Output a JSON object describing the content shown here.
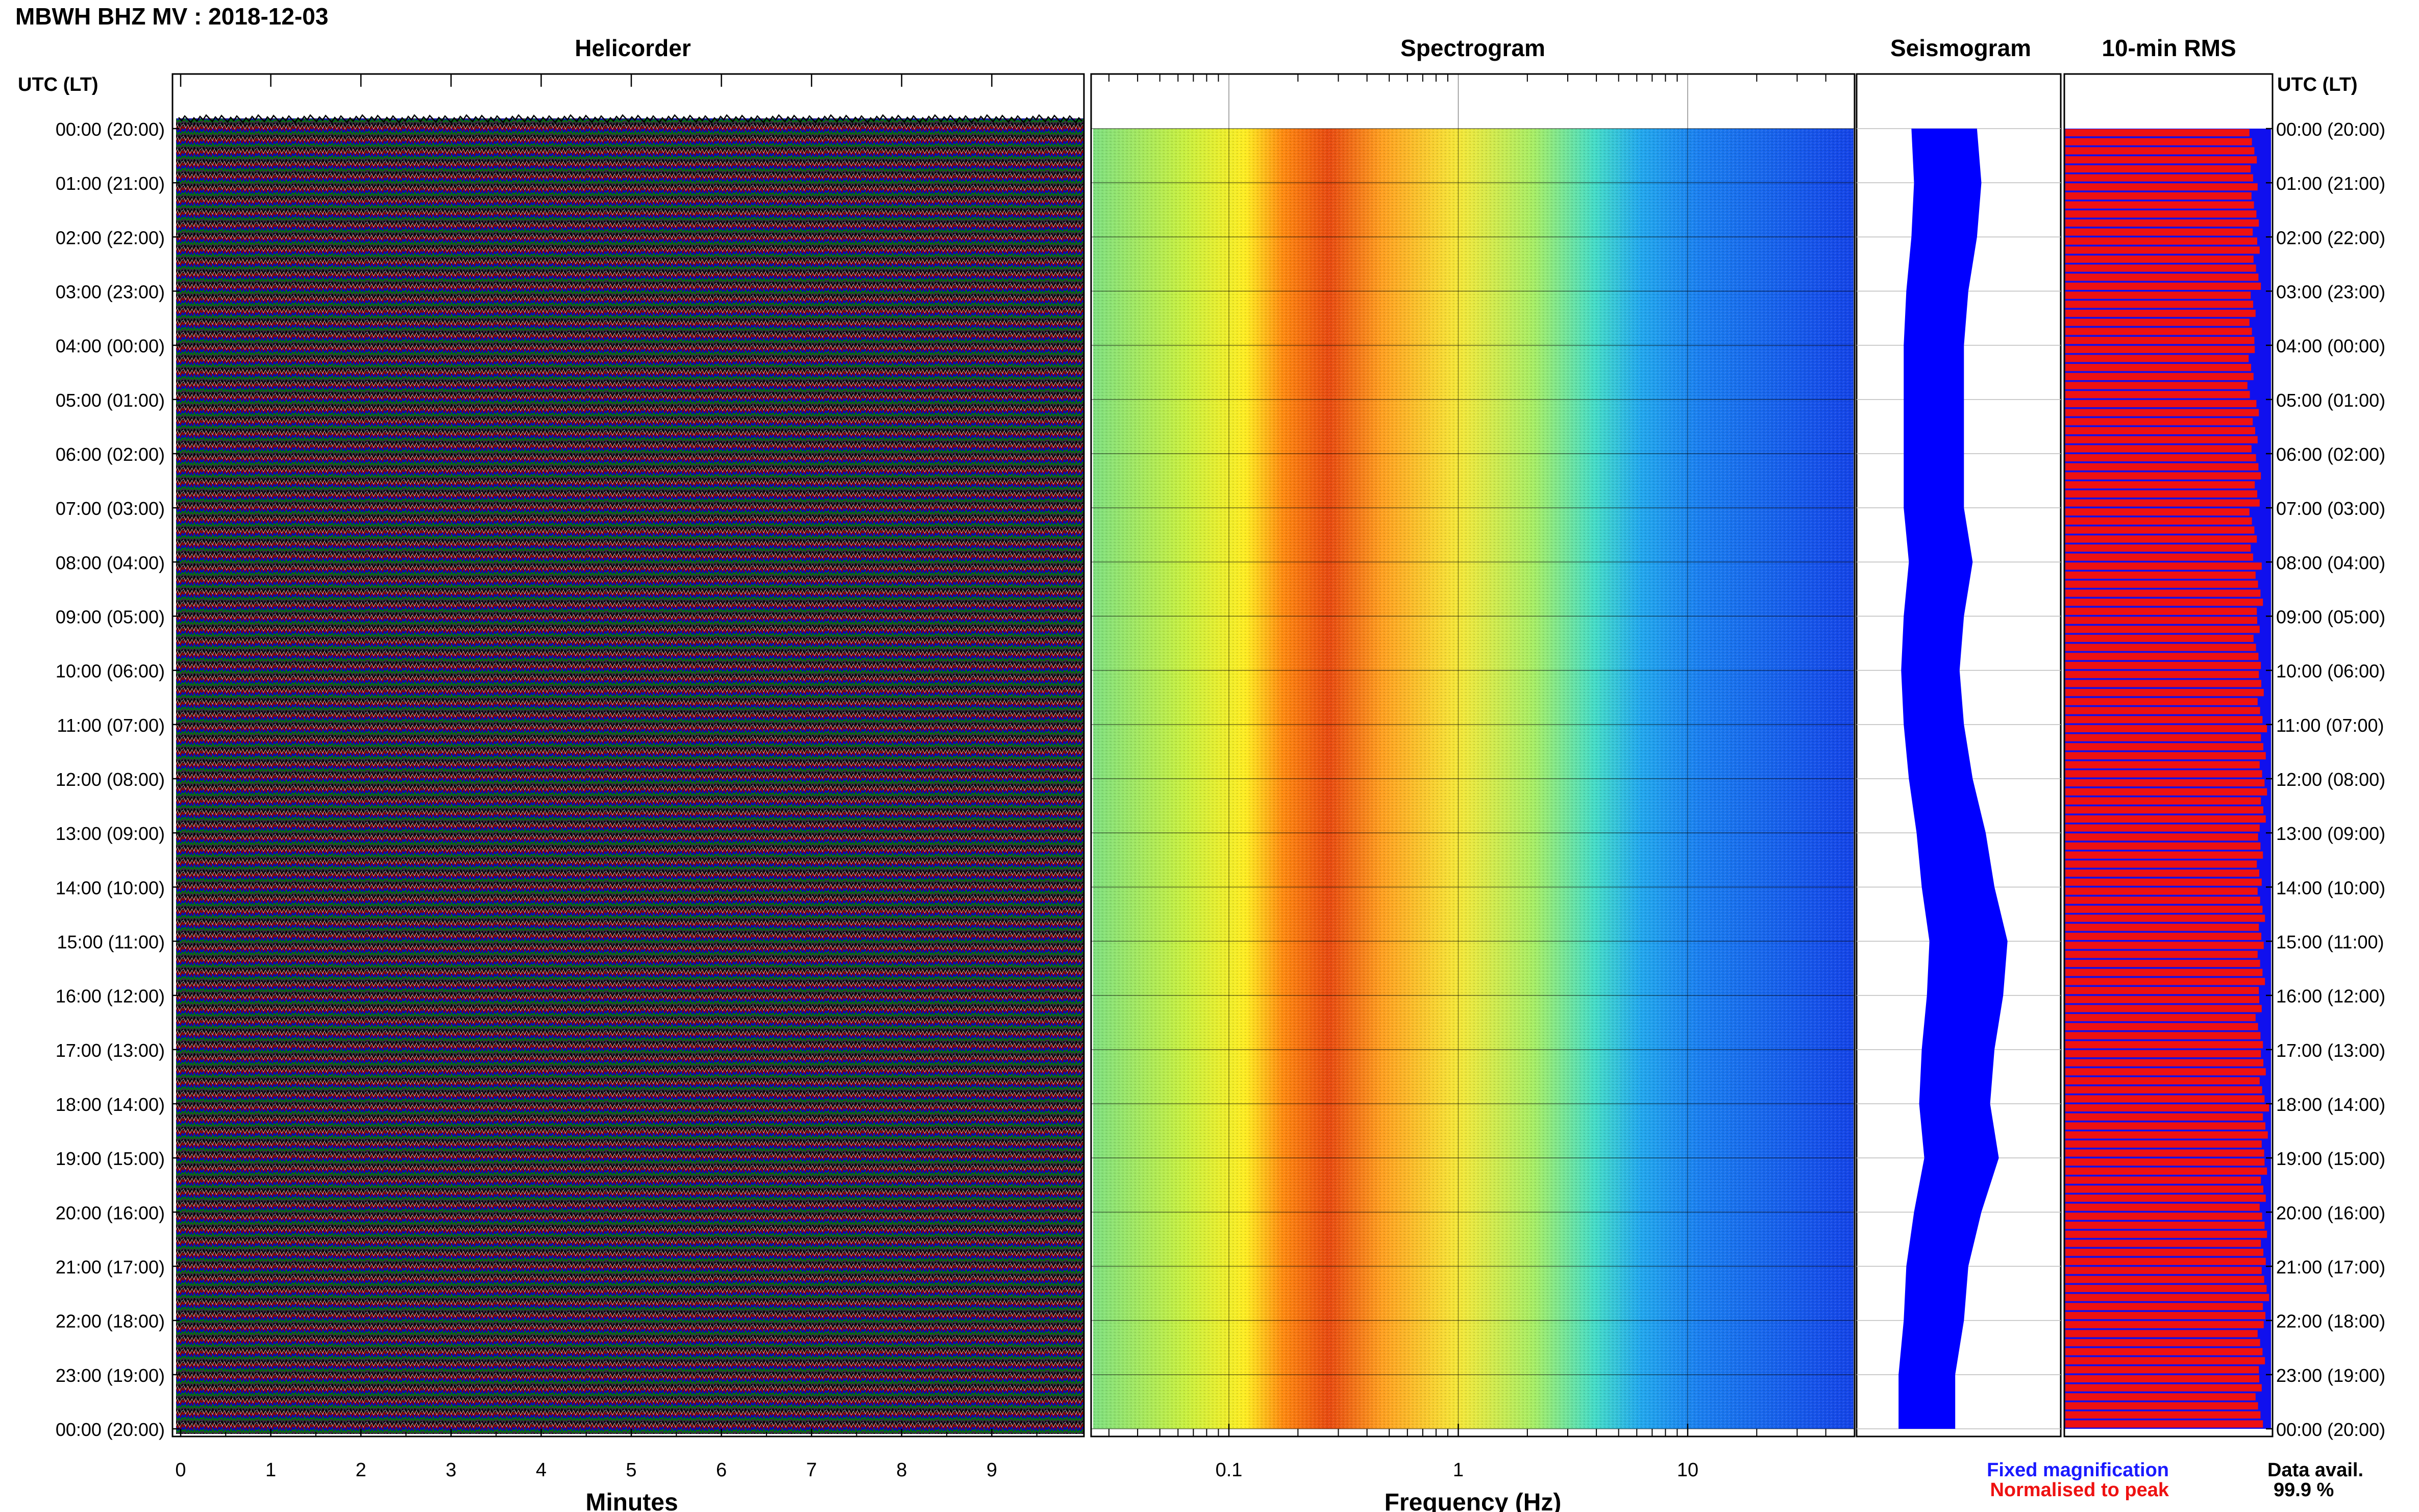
{
  "header": {
    "title": "MBWH BHZ MV : 2018-12-03"
  },
  "panels": {
    "helicorder": "Helicorder",
    "spectrogram": "Spectrogram",
    "seismogram": "Seismogram",
    "rms": "10-min RMS"
  },
  "axes": {
    "left_label": "UTC (LT)",
    "right_label": "UTC (LT)",
    "minutes_label": "Minutes",
    "frequency_label": "Frequency (Hz)"
  },
  "legend": {
    "fixed": "Fixed magnification",
    "normalised": "Normalised to peak"
  },
  "data_avail": {
    "label": "Data avail.",
    "value": "99.9 %"
  },
  "colors": {
    "fixed": "#0000ff",
    "normalised": "#ff0000",
    "heli_traces": [
      "#000000",
      "#8b0000",
      "#0000cc",
      "#007700"
    ]
  },
  "chart_data": {
    "time_ticks": [
      "00:00 (20:00)",
      "01:00 (21:00)",
      "02:00 (22:00)",
      "03:00 (23:00)",
      "04:00 (00:00)",
      "05:00 (01:00)",
      "06:00 (02:00)",
      "07:00 (03:00)",
      "08:00 (04:00)",
      "09:00 (05:00)",
      "10:00 (06:00)",
      "11:00 (07:00)",
      "12:00 (08:00)",
      "13:00 (09:00)",
      "14:00 (10:00)",
      "15:00 (11:00)",
      "16:00 (12:00)",
      "17:00 (13:00)",
      "18:00 (14:00)",
      "19:00 (15:00)",
      "20:00 (16:00)",
      "21:00 (17:00)",
      "22:00 (18:00)",
      "23:00 (19:00)",
      "00:00 (20:00)"
    ],
    "minutes_ticks": [
      "0",
      "1",
      "2",
      "3",
      "4",
      "5",
      "6",
      "7",
      "8",
      "9"
    ],
    "frequency_ticks": [
      "0.1",
      "1",
      "10"
    ],
    "frequency_scale": "log",
    "seismogram_envelope_by_hour": [
      0.55,
      0.6,
      0.55,
      0.45,
      0.4,
      0.4,
      0.4,
      0.4,
      0.5,
      0.4,
      0.35,
      0.4,
      0.5,
      0.65,
      0.75,
      0.9,
      0.85,
      0.75,
      0.7,
      0.8,
      0.6,
      0.45,
      0.4,
      0.3,
      0.3
    ],
    "rms_fraction_by_hour": [
      0.92,
      0.93,
      0.94,
      0.92,
      0.91,
      0.93,
      0.94,
      0.92,
      0.95,
      0.94,
      0.96,
      0.97,
      0.97,
      0.95,
      0.96,
      0.96,
      0.95,
      0.97,
      0.98,
      0.97,
      0.97,
      0.98,
      0.96,
      0.95,
      0.94
    ]
  }
}
